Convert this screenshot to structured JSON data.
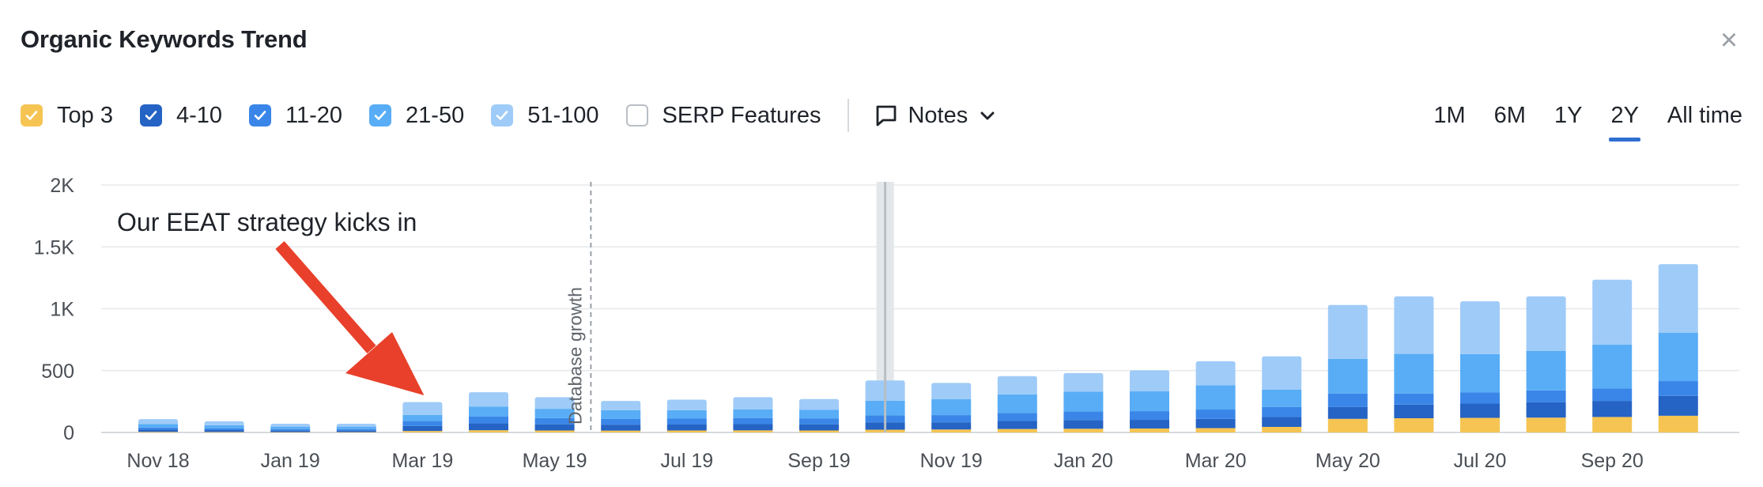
{
  "header": {
    "title": "Organic Keywords Trend",
    "close_label": "×"
  },
  "legend": [
    {
      "label": "Top 3",
      "checked": true,
      "color": "#f5c453"
    },
    {
      "label": "4-10",
      "checked": true,
      "color": "#2563c4"
    },
    {
      "label": "11-20",
      "checked": true,
      "color": "#3a86e8"
    },
    {
      "label": "21-50",
      "checked": true,
      "color": "#58adf6"
    },
    {
      "label": "51-100",
      "checked": true,
      "color": "#9fcbf8"
    },
    {
      "label": "SERP Features",
      "checked": false,
      "color": "#ffffff"
    }
  ],
  "notes": {
    "label": "Notes"
  },
  "periods": [
    {
      "label": "1M",
      "active": false
    },
    {
      "label": "6M",
      "active": false
    },
    {
      "label": "1Y",
      "active": false
    },
    {
      "label": "2Y",
      "active": true
    },
    {
      "label": "All time",
      "active": false
    }
  ],
  "chart_data": {
    "type": "bar",
    "stacked": true,
    "x_tick_labels": [
      "Nov 18",
      "Jan 19",
      "Mar 19",
      "May 19",
      "Jul 19",
      "Sep 19",
      "Nov 19",
      "Jan 20",
      "Mar 20",
      "May 20",
      "Jul 20",
      "Sep 20"
    ],
    "y_tick_labels": [
      "0",
      "500",
      "1K",
      "1.5K",
      "2K"
    ],
    "ylim": [
      0,
      2000
    ],
    "grid": true,
    "series": [
      {
        "name": "Top 3",
        "color": "#f5c453",
        "values": [
          5,
          4,
          3,
          3,
          12,
          18,
          16,
          15,
          16,
          17,
          16,
          22,
          24,
          28,
          30,
          32,
          35,
          45,
          110,
          115,
          118,
          120,
          125,
          135
        ]
      },
      {
        "name": "4-10",
        "color": "#2563c4",
        "values": [
          18,
          15,
          12,
          12,
          40,
          55,
          50,
          48,
          48,
          50,
          50,
          60,
          58,
          65,
          70,
          70,
          75,
          80,
          95,
          110,
          115,
          125,
          130,
          160
        ]
      },
      {
        "name": "11-20",
        "color": "#3a86e8",
        "values": [
          17,
          15,
          12,
          12,
          40,
          55,
          50,
          46,
          48,
          50,
          48,
          55,
          58,
          65,
          70,
          70,
          75,
          80,
          110,
          90,
          90,
          95,
          100,
          120
        ]
      },
      {
        "name": "21-50",
        "color": "#58adf6",
        "values": [
          28,
          24,
          20,
          20,
          50,
          80,
          75,
          71,
          68,
          70,
          70,
          120,
          130,
          150,
          160,
          160,
          195,
          140,
          280,
          320,
          310,
          320,
          355,
          390
        ]
      },
      {
        "name": "51-100",
        "color": "#9fcbf8",
        "values": [
          40,
          32,
          23,
          23,
          103,
          117,
          94,
          75,
          85,
          98,
          86,
          163,
          130,
          147,
          150,
          170,
          195,
          270,
          435,
          465,
          427,
          440,
          525,
          555
        ]
      }
    ],
    "annotations": [
      {
        "type": "text_arrow",
        "text": "Our EEAT strategy kicks in",
        "target_bar_index": 4,
        "color": "#e8402a"
      },
      {
        "type": "vertical_line",
        "label": "Database growth",
        "style": "dashed",
        "after_bar_index": 6.5
      },
      {
        "type": "highlight",
        "bar_index": 11
      }
    ]
  }
}
